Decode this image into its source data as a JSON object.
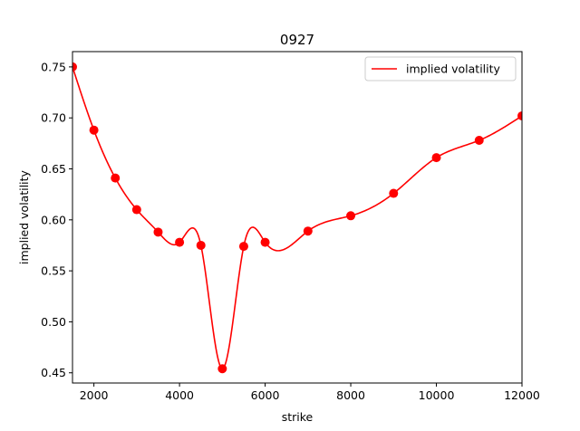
{
  "chart_data": {
    "type": "line",
    "title": "0927",
    "xlabel": "strike",
    "ylabel": "implied volatility",
    "xlim": [
      1500,
      12000
    ],
    "ylim": [
      0.44,
      0.765
    ],
    "xticks": [
      2000,
      4000,
      6000,
      8000,
      10000,
      12000
    ],
    "yticks": [
      0.45,
      0.5,
      0.55,
      0.6,
      0.65,
      0.7,
      0.75
    ],
    "grid": false,
    "legend": {
      "placement": "top-right",
      "entries": [
        "implied volatility"
      ]
    },
    "series": [
      {
        "name": "implied volatility",
        "color": "#ff0000",
        "x": [
          1500,
          2000,
          2500,
          3000,
          3500,
          4000,
          4500,
          5000,
          5500,
          6000,
          7000,
          8000,
          9000,
          10000,
          11000,
          12000
        ],
        "y": [
          0.75,
          0.688,
          0.641,
          0.61,
          0.588,
          0.578,
          0.575,
          0.454,
          0.574,
          0.578,
          0.589,
          0.604,
          0.626,
          0.661,
          0.678,
          0.702
        ]
      }
    ]
  }
}
